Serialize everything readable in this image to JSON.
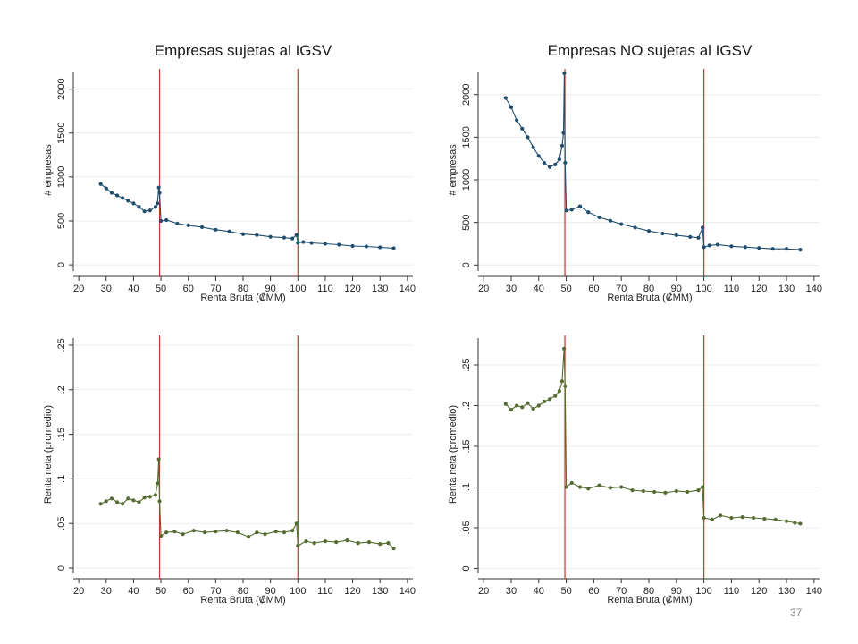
{
  "page_number": "37",
  "colors": {
    "blue": "#1f4e6e",
    "green": "#556b2f",
    "vline": "#c0392b",
    "grid": "#ececec"
  },
  "chart_data": [
    {
      "type": "scatter",
      "title": "Empresas sujetas al IGSV",
      "xlabel": "Renta Bruta (₡MM)",
      "ylabel": "# empresas",
      "xlim": [
        18,
        142
      ],
      "ylim": [
        -60,
        2200
      ],
      "xticks": [
        "20",
        "30",
        "40",
        "50",
        "60",
        "70",
        "80",
        "90",
        "100",
        "110",
        "120",
        "130",
        "140"
      ],
      "yticks": [
        "0",
        "500",
        "1000",
        "1500",
        "2000"
      ],
      "vlines": [
        49.5,
        100
      ],
      "grid": true,
      "legend": "none",
      "color": "blue",
      "series": [
        {
          "values": [
            [
              28,
              920
            ],
            [
              30,
              870
            ],
            [
              32,
              820
            ],
            [
              34,
              790
            ],
            [
              36,
              760
            ],
            [
              38,
              730
            ],
            [
              40,
              700
            ],
            [
              42,
              660
            ],
            [
              44,
              610
            ],
            [
              46,
              620
            ],
            [
              48,
              660
            ],
            [
              48.7,
              700
            ],
            [
              49.2,
              880
            ],
            [
              49.5,
              820
            ],
            [
              50,
              500
            ],
            [
              52,
              510
            ],
            [
              56,
              470
            ],
            [
              60,
              450
            ],
            [
              65,
              430
            ],
            [
              70,
              400
            ],
            [
              75,
              380
            ],
            [
              80,
              350
            ],
            [
              85,
              340
            ],
            [
              90,
              320
            ],
            [
              95,
              310
            ],
            [
              98,
              300
            ],
            [
              99.5,
              340
            ],
            [
              100,
              250
            ],
            [
              102,
              260
            ],
            [
              105,
              250
            ],
            [
              110,
              240
            ],
            [
              115,
              230
            ],
            [
              120,
              215
            ],
            [
              125,
              210
            ],
            [
              130,
              200
            ],
            [
              135,
              190
            ]
          ]
        }
      ]
    },
    {
      "type": "scatter",
      "title": "Empresas NO sujetas al IGSV",
      "xlabel": "Renta Bruta (₡MM)",
      "ylabel": "# empresas",
      "xlim": [
        18,
        142
      ],
      "ylim": [
        -60,
        2270
      ],
      "xticks": [
        "20",
        "30",
        "40",
        "50",
        "60",
        "70",
        "80",
        "90",
        "100",
        "110",
        "120",
        "130",
        "140"
      ],
      "yticks": [
        "0",
        "500",
        "1000",
        "1500",
        "2000"
      ],
      "vlines": [
        49.5,
        100
      ],
      "grid": true,
      "legend": "none",
      "color": "blue",
      "series": [
        {
          "values": [
            [
              28,
              1960
            ],
            [
              30,
              1850
            ],
            [
              32,
              1700
            ],
            [
              34,
              1600
            ],
            [
              36,
              1500
            ],
            [
              38,
              1380
            ],
            [
              40,
              1280
            ],
            [
              42,
              1200
            ],
            [
              44,
              1150
            ],
            [
              46,
              1180
            ],
            [
              47.5,
              1240
            ],
            [
              48.5,
              1400
            ],
            [
              49,
              1550
            ],
            [
              49.3,
              2250
            ],
            [
              49.6,
              1200
            ],
            [
              50,
              640
            ],
            [
              52,
              650
            ],
            [
              55,
              690
            ],
            [
              58,
              620
            ],
            [
              62,
              560
            ],
            [
              66,
              520
            ],
            [
              70,
              480
            ],
            [
              75,
              440
            ],
            [
              80,
              400
            ],
            [
              85,
              370
            ],
            [
              90,
              350
            ],
            [
              95,
              330
            ],
            [
              98,
              320
            ],
            [
              99.5,
              440
            ],
            [
              100,
              210
            ],
            [
              102,
              230
            ],
            [
              105,
              240
            ],
            [
              110,
              220
            ],
            [
              115,
              210
            ],
            [
              120,
              200
            ],
            [
              125,
              190
            ],
            [
              130,
              190
            ],
            [
              135,
              180
            ]
          ]
        }
      ]
    },
    {
      "type": "scatter",
      "title": "",
      "xlabel": "Renta Bruta (₡MM)",
      "ylabel": "Renta neta (promedio)",
      "xlim": [
        18,
        142
      ],
      "ylim": [
        -0.005,
        0.258
      ],
      "xticks": [
        "20",
        "30",
        "40",
        "50",
        "60",
        "70",
        "80",
        "90",
        "100",
        "110",
        "120",
        "130",
        "140"
      ],
      "yticks": [
        "0",
        ".05",
        ".1",
        ".15",
        ".2",
        ".25"
      ],
      "vlines": [
        49.5,
        100
      ],
      "grid": true,
      "legend": "none",
      "color": "green",
      "series": [
        {
          "values": [
            [
              28,
              0.072
            ],
            [
              30,
              0.075
            ],
            [
              32,
              0.078
            ],
            [
              34,
              0.074
            ],
            [
              36,
              0.072
            ],
            [
              38,
              0.078
            ],
            [
              40,
              0.076
            ],
            [
              42,
              0.074
            ],
            [
              44,
              0.079
            ],
            [
              46,
              0.08
            ],
            [
              48,
              0.082
            ],
            [
              48.8,
              0.095
            ],
            [
              49.2,
              0.122
            ],
            [
              49.5,
              0.075
            ],
            [
              50,
              0.036
            ],
            [
              52,
              0.04
            ],
            [
              55,
              0.041
            ],
            [
              58,
              0.038
            ],
            [
              62,
              0.042
            ],
            [
              66,
              0.04
            ],
            [
              70,
              0.041
            ],
            [
              74,
              0.042
            ],
            [
              78,
              0.04
            ],
            [
              82,
              0.035
            ],
            [
              85,
              0.04
            ],
            [
              88,
              0.038
            ],
            [
              92,
              0.041
            ],
            [
              95,
              0.04
            ],
            [
              98,
              0.042
            ],
            [
              99.5,
              0.05
            ],
            [
              100,
              0.025
            ],
            [
              103,
              0.03
            ],
            [
              106,
              0.028
            ],
            [
              110,
              0.03
            ],
            [
              114,
              0.029
            ],
            [
              118,
              0.031
            ],
            [
              122,
              0.028
            ],
            [
              126,
              0.029
            ],
            [
              130,
              0.027
            ],
            [
              133,
              0.028
            ],
            [
              135,
              0.022
            ]
          ]
        }
      ]
    },
    {
      "type": "scatter",
      "title": "",
      "xlabel": "Renta Bruta (₡MM)",
      "ylabel": "Renta neta (promedio)",
      "xlim": [
        18,
        142
      ],
      "ylim": [
        -0.005,
        0.283
      ],
      "xticks": [
        "20",
        "30",
        "40",
        "50",
        "60",
        "70",
        "80",
        "90",
        "100",
        "110",
        "120",
        "130",
        "140"
      ],
      "yticks": [
        "0",
        ".05",
        ".1",
        ".15",
        ".2",
        ".25"
      ],
      "vlines": [
        49.5,
        100
      ],
      "grid": true,
      "legend": "none",
      "color": "green",
      "series": [
        {
          "values": [
            [
              28,
              0.202
            ],
            [
              30,
              0.195
            ],
            [
              32,
              0.2
            ],
            [
              34,
              0.198
            ],
            [
              36,
              0.203
            ],
            [
              38,
              0.196
            ],
            [
              40,
              0.2
            ],
            [
              42,
              0.205
            ],
            [
              44,
              0.208
            ],
            [
              46,
              0.212
            ],
            [
              47.5,
              0.218
            ],
            [
              48.5,
              0.23
            ],
            [
              49.2,
              0.27
            ],
            [
              49.6,
              0.224
            ],
            [
              50,
              0.1
            ],
            [
              52,
              0.105
            ],
            [
              55,
              0.1
            ],
            [
              58,
              0.098
            ],
            [
              62,
              0.102
            ],
            [
              66,
              0.099
            ],
            [
              70,
              0.1
            ],
            [
              74,
              0.096
            ],
            [
              78,
              0.095
            ],
            [
              82,
              0.094
            ],
            [
              86,
              0.093
            ],
            [
              90,
              0.095
            ],
            [
              94,
              0.094
            ],
            [
              98,
              0.096
            ],
            [
              99.5,
              0.1
            ],
            [
              100,
              0.062
            ],
            [
              103,
              0.06
            ],
            [
              106,
              0.065
            ],
            [
              110,
              0.062
            ],
            [
              114,
              0.063
            ],
            [
              118,
              0.062
            ],
            [
              122,
              0.061
            ],
            [
              126,
              0.06
            ],
            [
              130,
              0.058
            ],
            [
              133,
              0.056
            ],
            [
              135,
              0.055
            ]
          ]
        }
      ]
    }
  ]
}
